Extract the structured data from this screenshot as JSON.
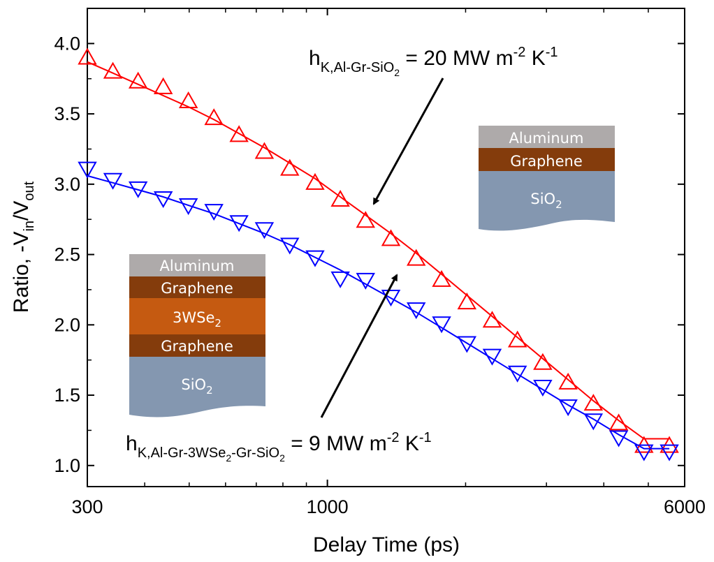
{
  "chart_data": {
    "type": "scatter",
    "xscale": "log",
    "xlim": [
      300,
      6000
    ],
    "ylim": [
      0.85,
      4.25
    ],
    "xlabel": "Delay Time (ps)",
    "ylabel": "Ratio, -V",
    "ylabel_sub_in": "in",
    "ylabel_slash": "/V",
    "ylabel_sub_out": "out",
    "x_ticks": [
      300,
      1000,
      6000
    ],
    "x_tick_labels": [
      "300",
      "1000",
      "6000"
    ],
    "y_ticks": [
      1.0,
      1.5,
      2.0,
      2.5,
      3.0,
      3.5,
      4.0
    ],
    "y_tick_labels": [
      "1.0",
      "1.5",
      "2.0",
      "2.5",
      "3.0",
      "3.5",
      "4.0"
    ],
    "grid": false,
    "series": [
      {
        "marker": "triangle-up",
        "color": "#ff0000",
        "x": [
          300,
          341,
          387,
          439,
          498,
          566,
          642,
          729,
          828,
          940,
          1067,
          1211,
          1375,
          1561,
          1773,
          2013,
          2285,
          2594,
          2945,
          3344,
          3796,
          4310,
          4893,
          5556
        ],
        "y": [
          3.9,
          3.8,
          3.73,
          3.69,
          3.59,
          3.47,
          3.35,
          3.23,
          3.11,
          3.01,
          2.89,
          2.74,
          2.61,
          2.47,
          2.32,
          2.16,
          2.03,
          1.89,
          1.73,
          1.59,
          1.44,
          1.3,
          1.14,
          1.14
        ],
        "fit_y": [
          3.87,
          3.79,
          3.71,
          3.63,
          3.55,
          3.46,
          3.36,
          3.26,
          3.15,
          3.04,
          2.91,
          2.78,
          2.65,
          2.51,
          2.36,
          2.21,
          2.06,
          1.91,
          1.76,
          1.61,
          1.46,
          1.32,
          1.19,
          1.19
        ]
      },
      {
        "marker": "triangle-down",
        "color": "#0000ff",
        "x": [
          300,
          341,
          387,
          439,
          498,
          566,
          642,
          729,
          828,
          940,
          1067,
          1211,
          1375,
          1561,
          1773,
          2013,
          2285,
          2594,
          2945,
          3344,
          3796,
          4310,
          4893,
          5556
        ],
        "y": [
          3.11,
          3.03,
          2.97,
          2.9,
          2.85,
          2.81,
          2.73,
          2.68,
          2.57,
          2.48,
          2.33,
          2.32,
          2.2,
          2.11,
          2.01,
          1.87,
          1.78,
          1.66,
          1.56,
          1.42,
          1.32,
          1.2,
          1.1,
          1.1
        ],
        "fit_y": [
          3.06,
          3.01,
          2.96,
          2.91,
          2.85,
          2.79,
          2.72,
          2.65,
          2.57,
          2.48,
          2.39,
          2.29,
          2.19,
          2.09,
          1.98,
          1.87,
          1.76,
          1.65,
          1.54,
          1.43,
          1.33,
          1.22,
          1.12,
          1.12
        ]
      }
    ],
    "annotations": {
      "red": {
        "h": "h",
        "sub": "K,Al-Gr-SiO",
        "sub2": "2",
        "value": " = 20 MW m",
        "exp": "-2",
        "unit": " K",
        "exp2": "-1"
      },
      "blue": {
        "h": "h",
        "sub": "K,Al-Gr-3WSe",
        "sub2": "2",
        "sub3": "-Gr-SiO",
        "sub4": "2",
        "value": " = 9 MW m",
        "exp": "-2",
        "unit": " K",
        "exp2": "-1"
      }
    },
    "stack_right": {
      "layers": [
        {
          "label": "Aluminum",
          "color": "#aeaaaa"
        },
        {
          "label": "Graphene",
          "color": "#843c0c"
        },
        {
          "label": "SiO",
          "sub": "2",
          "color": "#8497b0"
        }
      ]
    },
    "stack_left": {
      "layers": [
        {
          "label": "Aluminum",
          "color": "#aeaaaa"
        },
        {
          "label": "Graphene",
          "color": "#843c0c"
        },
        {
          "label": "3WSe",
          "sub": "2",
          "color": "#c55a11"
        },
        {
          "label": "Graphene",
          "color": "#843c0c"
        },
        {
          "label": "SiO",
          "sub": "2",
          "color": "#8497b0"
        }
      ]
    }
  }
}
